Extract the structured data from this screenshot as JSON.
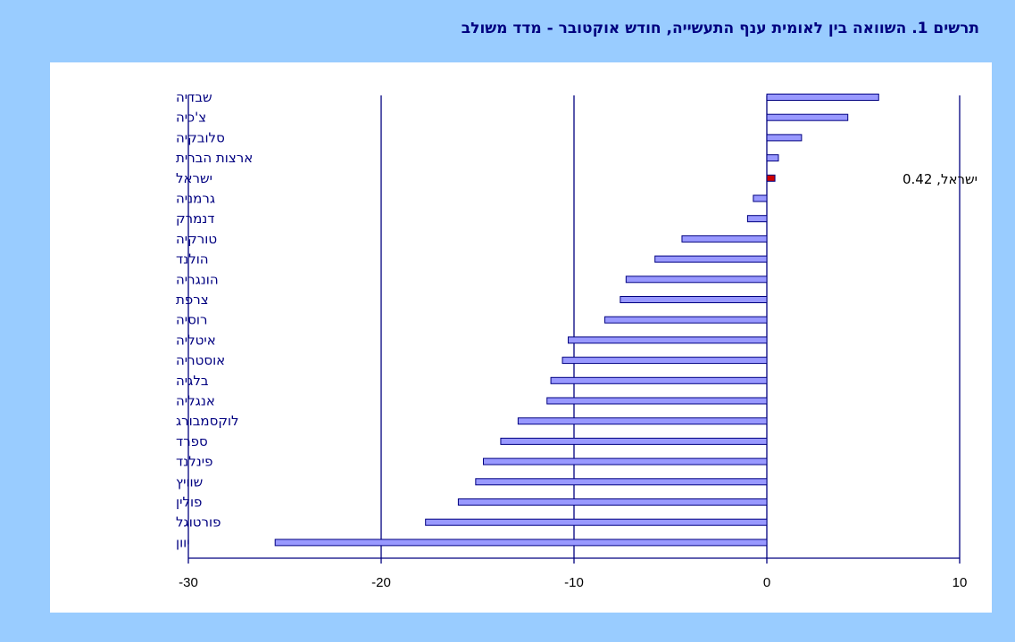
{
  "title": "תרשים 1. השוואה בין לאומית ענף התעשייה, חודש אוקטובר - מדד משולב",
  "chart_data": {
    "type": "bar",
    "orientation": "horizontal",
    "title": "תרשים 1. השוואה בין לאומית ענף התעשייה, חודש אוקטובר - מדד משולב",
    "xlabel": "",
    "ylabel": "",
    "categories": [
      "שבדיה",
      "צ'כיה",
      "סלובקיה",
      "ארצות הברית",
      "ישראל",
      "גרמניה",
      "דנמרק",
      "טורקיה",
      "הולנד",
      "הונגריה",
      "צרפת",
      "רוסיה",
      "איטליה",
      "אוסטריה",
      "בלגיה",
      "אנגליה",
      "לוקסמבורג",
      "ספרד",
      "פינלנד",
      "שוויץ",
      "פולין",
      "פורטוגל",
      "יוון"
    ],
    "values": [
      5.8,
      4.2,
      1.8,
      0.6,
      0.42,
      -0.7,
      -1.0,
      -4.4,
      -5.8,
      -7.3,
      -7.6,
      -8.4,
      -10.3,
      -10.6,
      -11.2,
      -11.4,
      -12.9,
      -13.8,
      -14.7,
      -15.1,
      -16.0,
      -17.7,
      -25.5
    ],
    "xlim": [
      -30,
      10
    ],
    "xticks": [
      "-30",
      "-20",
      "-10",
      "0",
      "10"
    ],
    "xtick_values": [
      -30,
      -20,
      -10,
      0,
      10
    ],
    "gridlines": true,
    "bar_color": "#9999ff",
    "highlight_color": "#cc0000",
    "highlight_category": "ישראל",
    "annotation": {
      "category": "ישראל",
      "text": "ישראל, 0.42"
    }
  }
}
